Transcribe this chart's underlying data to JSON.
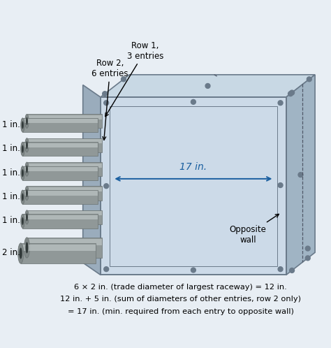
{
  "bg_color": "#e8eef4",
  "border_color": "#5588bb",
  "box_face_color": "#b8c8d8",
  "box_top_color": "#c8d8e4",
  "box_right_color": "#a0b4c4",
  "box_left_face_color": "#9aacbc",
  "inner_face_color": "#ccdae8",
  "frame_color": "#6a7a8a",
  "conduit_body": "#909898",
  "conduit_dark": "#6a7272",
  "conduit_light": "#c0c8c8",
  "conduit_end_dark": "#505858",
  "row1_label": "Row 1,\n3 entries",
  "row2_label": "Row 2,\n6 entries",
  "conduit_labels": [
    "1 in.",
    "1 in.",
    "1 in.",
    "1 in.",
    "1 in.",
    "2 in."
  ],
  "conduit_radii": [
    0.22,
    0.22,
    0.22,
    0.22,
    0.22,
    0.32
  ],
  "dim_label": "17 in.",
  "wall_label": "Opposite\nwall",
  "formula_lines": [
    "6 × 2 in. (trade diameter of largest raceway) = 12 in.",
    "12 in. + 5 in. (sum of diameters of other entries, row 2 only)",
    "= 17 in. (min. required from each entry to opposite wall)"
  ],
  "formula_fontsize": 8.2,
  "label_fontsize": 8.5,
  "annot_fontsize": 8.5,
  "dim_color": "#1a5fa0",
  "screw_color": "#6a7a8a",
  "dashed_color": "#505868"
}
